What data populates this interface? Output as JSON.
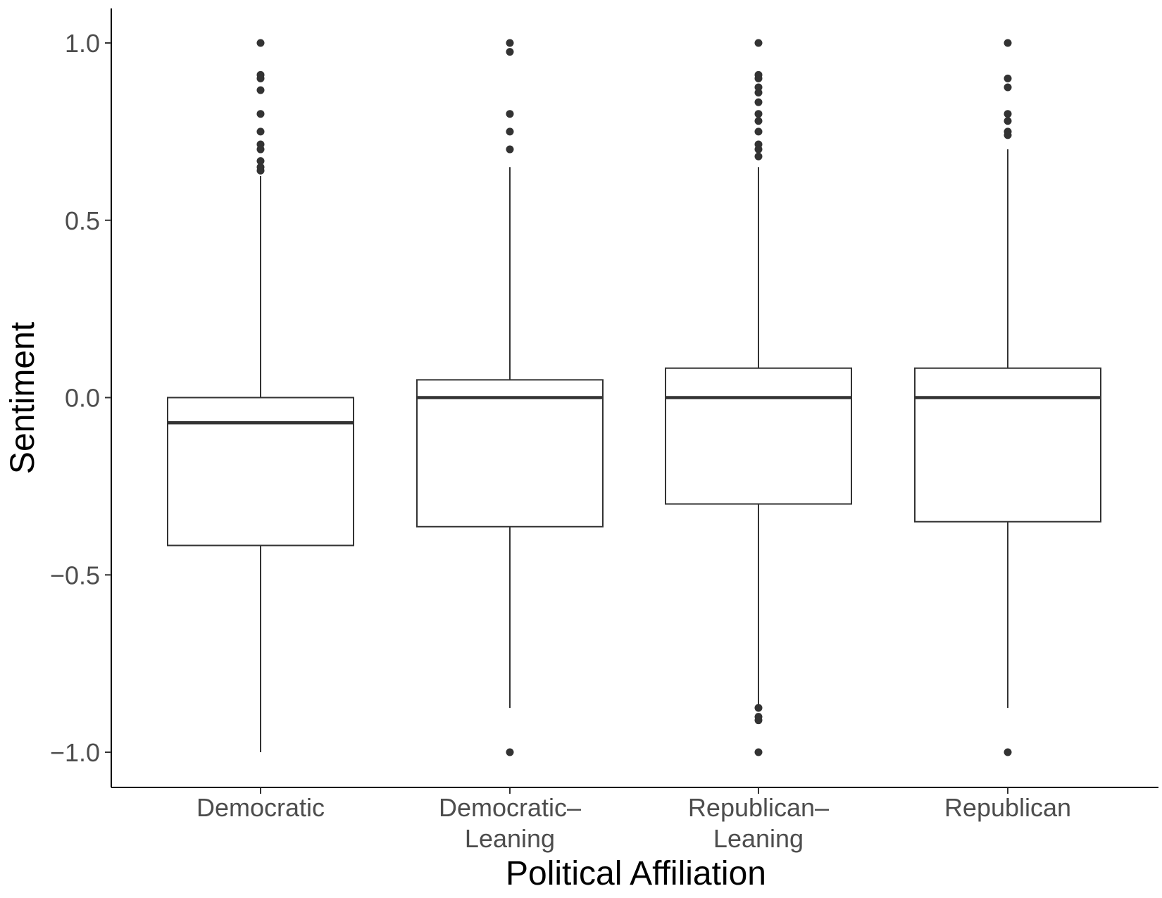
{
  "chart_data": {
    "type": "boxplot",
    "title": "",
    "xlabel": "Political Affiliation",
    "ylabel": "Sentiment",
    "ylim": [
      -1.1,
      1.1
    ],
    "yticks": [
      {
        "value": 1.0,
        "label": "1.0"
      },
      {
        "value": 0.5,
        "label": "0.5"
      },
      {
        "value": 0.0,
        "label": "0.0"
      },
      {
        "value": -0.5,
        "label": "−0.5"
      },
      {
        "value": -1.0,
        "label": "−1.0"
      }
    ],
    "grid": false,
    "legend": "none",
    "categories": [
      {
        "lines": [
          "Democratic"
        ]
      },
      {
        "lines": [
          "Democratic–",
          "Leaning"
        ]
      },
      {
        "lines": [
          "Republican–",
          "Leaning"
        ]
      },
      {
        "lines": [
          "Republican"
        ]
      }
    ],
    "boxes": [
      {
        "whisker_low": -1.0,
        "q1": -0.417,
        "median": -0.071,
        "q3": 0.0,
        "whisker_high": 0.625,
        "outliers": [
          1.0,
          0.91,
          0.9,
          0.867,
          0.8,
          0.75,
          0.714,
          0.7,
          0.667,
          0.65,
          0.64
        ]
      },
      {
        "whisker_low": -0.875,
        "q1": -0.364,
        "median": 0.0,
        "q3": 0.05,
        "whisker_high": 0.65,
        "outliers": [
          1.0,
          0.975,
          0.8,
          0.75,
          0.7,
          -1.0
        ]
      },
      {
        "whisker_low": -0.875,
        "q1": -0.3,
        "median": 0.0,
        "q3": 0.083,
        "whisker_high": 0.65,
        "outliers": [
          1.0,
          0.91,
          0.9,
          0.875,
          0.86,
          0.833,
          0.8,
          0.78,
          0.75,
          0.714,
          0.7,
          0.68,
          -0.875,
          -0.9,
          -0.91,
          -1.0
        ]
      },
      {
        "whisker_low": -0.875,
        "q1": -0.35,
        "median": 0.0,
        "q3": 0.083,
        "whisker_high": 0.7,
        "outliers": [
          1.0,
          0.9,
          0.875,
          0.8,
          0.78,
          0.75,
          0.74,
          -1.0
        ]
      }
    ],
    "colors": {
      "line": "#333333",
      "axis": "#000000",
      "fill": "#ffffff",
      "outlier": "#333333"
    }
  }
}
